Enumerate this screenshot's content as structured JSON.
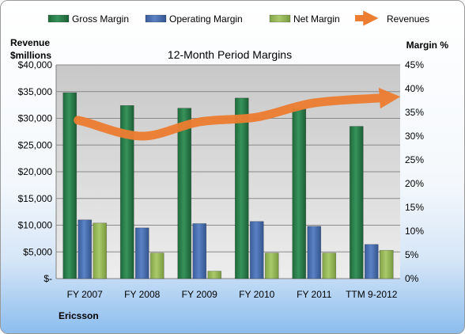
{
  "chart_data": {
    "type": "bar",
    "title": "12-Month Period Margins",
    "company": "Ericsson",
    "categories": [
      "FY 2007",
      "FY 2008",
      "FY 2009",
      "FY 2010",
      "FY 2011",
      "TTM 9-2012"
    ],
    "series": [
      {
        "name": "Gross Margin",
        "axis": "left",
        "color": "#2e7d4f",
        "values": [
          34800,
          32400,
          31900,
          33800,
          31800,
          28500
        ]
      },
      {
        "name": "Operating Margin",
        "axis": "left",
        "color": "#4a6fb0",
        "values": [
          11000,
          9500,
          10300,
          10700,
          9800,
          6400
        ]
      },
      {
        "name": "Net Margin",
        "axis": "left",
        "color": "#9bbb59",
        "values": [
          10400,
          4800,
          1400,
          4800,
          4800,
          5300
        ]
      },
      {
        "name": "Revenues",
        "axis": "right",
        "color": "#ed7d31",
        "type": "line",
        "values": [
          33,
          30,
          33,
          34,
          37,
          38
        ]
      }
    ],
    "yleft": {
      "label_line1": "Revenue",
      "label_line2": "$millions",
      "ylim": [
        0,
        40000
      ],
      "ticks": [
        "$-",
        "$5,000",
        "$10,000",
        "$15,000",
        "$20,000",
        "$25,000",
        "$30,000",
        "$35,000",
        "$40,000"
      ]
    },
    "yright": {
      "label": "Margin %",
      "ylim": [
        0,
        45
      ],
      "ticks": [
        "0%",
        "5%",
        "10%",
        "15%",
        "20%",
        "25%",
        "30%",
        "35%",
        "40%",
        "45%"
      ]
    },
    "legend_position": "top",
    "grid": true
  }
}
